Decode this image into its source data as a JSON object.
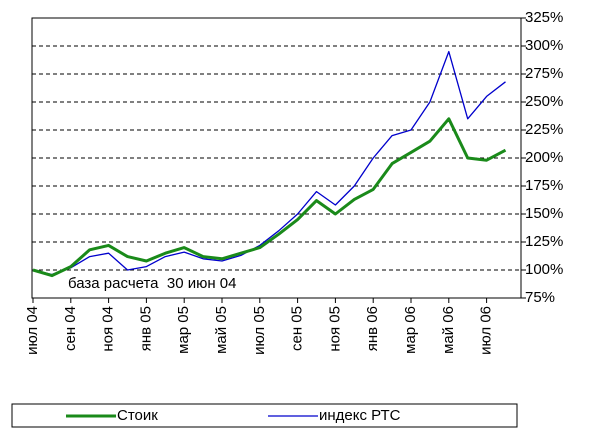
{
  "chart_data": {
    "type": "line",
    "x": [
      "2004-07",
      "2004-08",
      "2004-09",
      "2004-10",
      "2004-11",
      "2004-12",
      "2005-01",
      "2005-02",
      "2005-03",
      "2005-04",
      "2005-05",
      "2005-06",
      "2005-07",
      "2005-08",
      "2005-09",
      "2005-10",
      "2005-11",
      "2005-12",
      "2006-01",
      "2006-02",
      "2006-03",
      "2006-04",
      "2006-05",
      "2006-06",
      "2006-07",
      "2006-08"
    ],
    "xticks": [
      {
        "value": "2004-07",
        "label": "июл 04"
      },
      {
        "value": "2004-09",
        "label": "сен 04"
      },
      {
        "value": "2004-11",
        "label": "ноя 04"
      },
      {
        "value": "2005-01",
        "label": "янв 05"
      },
      {
        "value": "2005-03",
        "label": "мар 05"
      },
      {
        "value": "2005-05",
        "label": "май 05"
      },
      {
        "value": "2005-07",
        "label": "июл 05"
      },
      {
        "value": "2005-09",
        "label": "сен 05"
      },
      {
        "value": "2005-11",
        "label": "ноя 05"
      },
      {
        "value": "2006-01",
        "label": "янв 06"
      },
      {
        "value": "2006-03",
        "label": "мар 06"
      },
      {
        "value": "2006-05",
        "label": "май 06"
      },
      {
        "value": "2006-07",
        "label": "июл 06"
      }
    ],
    "series": [
      {
        "name": "Стоик",
        "color": "#1a8a1a",
        "values": [
          100,
          95,
          103,
          118,
          122,
          112,
          108,
          115,
          120,
          112,
          110,
          115,
          120,
          132,
          145,
          162,
          150,
          163,
          172,
          195,
          205,
          215,
          235,
          200,
          198,
          207
        ]
      },
      {
        "name": "индекс РТС",
        "color": "#0000cc",
        "values": [
          100,
          96,
          102,
          112,
          115,
          100,
          103,
          112,
          116,
          110,
          108,
          113,
          122,
          135,
          150,
          170,
          158,
          175,
          200,
          220,
          225,
          250,
          295,
          235,
          255,
          268
        ]
      }
    ],
    "ylim": [
      75,
      325
    ],
    "yticks": [
      {
        "value": 75,
        "label": "75%"
      },
      {
        "value": 100,
        "label": "100%"
      },
      {
        "value": 125,
        "label": "125%"
      },
      {
        "value": 150,
        "label": "150%"
      },
      {
        "value": 175,
        "label": "175%"
      },
      {
        "value": 200,
        "label": "200%"
      },
      {
        "value": 225,
        "label": "225%"
      },
      {
        "value": 250,
        "label": "250%"
      },
      {
        "value": 275,
        "label": "275%"
      },
      {
        "value": 300,
        "label": "300%"
      },
      {
        "value": 325,
        "label": "325%"
      }
    ],
    "annotation": "база расчета  30 июн 04",
    "grid": true,
    "legend": "bottom"
  }
}
